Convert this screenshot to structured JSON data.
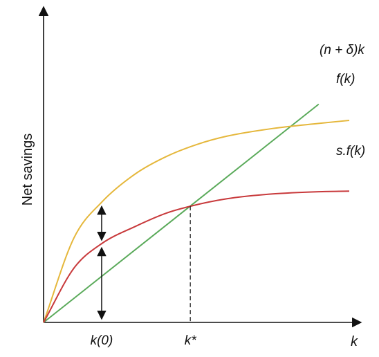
{
  "chart_data": {
    "type": "line",
    "title": "",
    "ylabel": "Net savings",
    "xlabel": "k",
    "grid": false,
    "x_ticks": [
      {
        "label": "k(0)",
        "x": 0.19
      },
      {
        "label": "k*",
        "x": 0.48
      }
    ],
    "k_star": 0.48,
    "k0": 0.19,
    "series": [
      {
        "name": "(n + δ)k",
        "color": "#5aaa5a",
        "x": [
          0,
          0.48,
          0.9
        ],
        "y": [
          0,
          0.575,
          1.08
        ]
      },
      {
        "name": "f(k)",
        "color": "#e5b73b",
        "x": [
          0,
          0.1,
          0.19,
          0.3,
          0.4,
          0.5,
          0.6,
          0.75,
          0.9,
          1.0
        ],
        "y": [
          0,
          0.42,
          0.595,
          0.735,
          0.82,
          0.88,
          0.922,
          0.96,
          0.985,
          1.0
        ]
      },
      {
        "name": "s.f(k)",
        "color": "#c8393b",
        "x": [
          0,
          0.1,
          0.19,
          0.3,
          0.4,
          0.48,
          0.6,
          0.75,
          0.9,
          1.0
        ],
        "y": [
          0,
          0.27,
          0.39,
          0.475,
          0.54,
          0.575,
          0.612,
          0.636,
          0.647,
          0.65
        ]
      }
    ],
    "annotations": [
      {
        "type": "double-arrow",
        "x": 0.19,
        "from": 0,
        "to": 0.39
      },
      {
        "type": "double-arrow",
        "x": 0.19,
        "from": 0.39,
        "to": 0.595
      },
      {
        "type": "dashed-vertical",
        "x": 0.48,
        "from": 0,
        "to": 0.575
      }
    ],
    "xlim": [
      0,
      1.0
    ],
    "ylim": [
      0,
      1.25
    ]
  },
  "colors": {
    "axis": "#111111",
    "dashed": "#111111"
  }
}
